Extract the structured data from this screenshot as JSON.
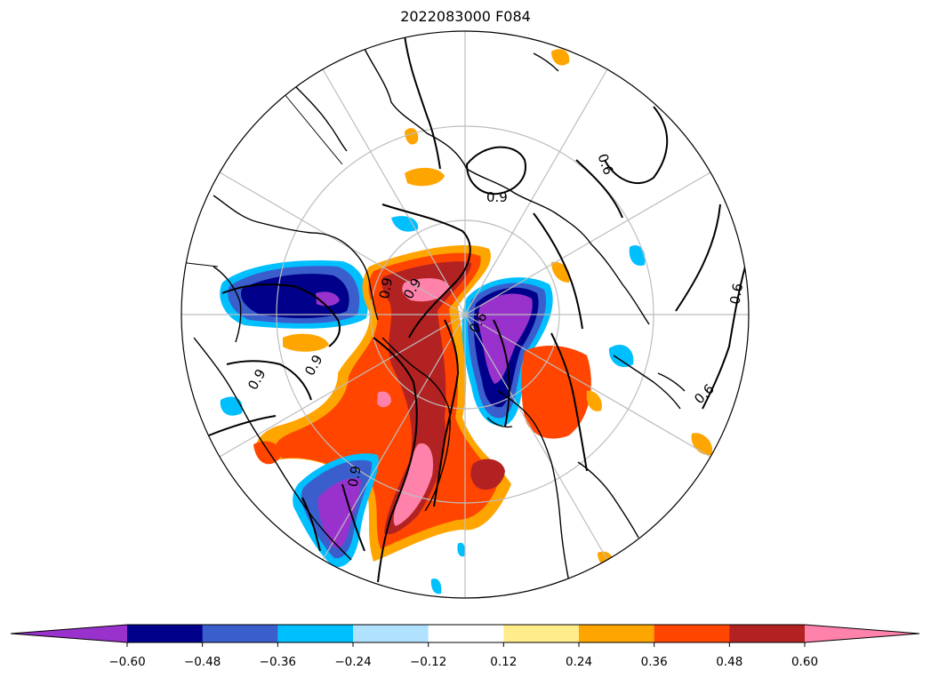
{
  "title": "2022083000 F084",
  "map": {
    "projection": "north-polar-stereographic",
    "contour_labels": [
      "0.9",
      "0.6",
      "0.9",
      "0.6",
      "0.6",
      "0.9",
      "0.6",
      "0.9",
      "0.9",
      "0.9"
    ]
  },
  "colorbar": {
    "extend": "both",
    "bins": [
      {
        "color": "#9932cc"
      },
      {
        "color": "#00008b"
      },
      {
        "color": "#3a5fcd"
      },
      {
        "color": "#00bfff"
      },
      {
        "color": "#b0e2ff"
      },
      {
        "color": "#ffffff"
      },
      {
        "color": "#ffec8b"
      },
      {
        "color": "#ffa500"
      },
      {
        "color": "#ff4500"
      },
      {
        "color": "#b22222"
      },
      {
        "color": "#ff82ab"
      }
    ],
    "tick_labels": [
      "−0.60",
      "−0.48",
      "−0.36",
      "−0.24",
      "−0.12",
      "0.12",
      "0.24",
      "0.36",
      "0.48",
      "0.60"
    ]
  }
}
